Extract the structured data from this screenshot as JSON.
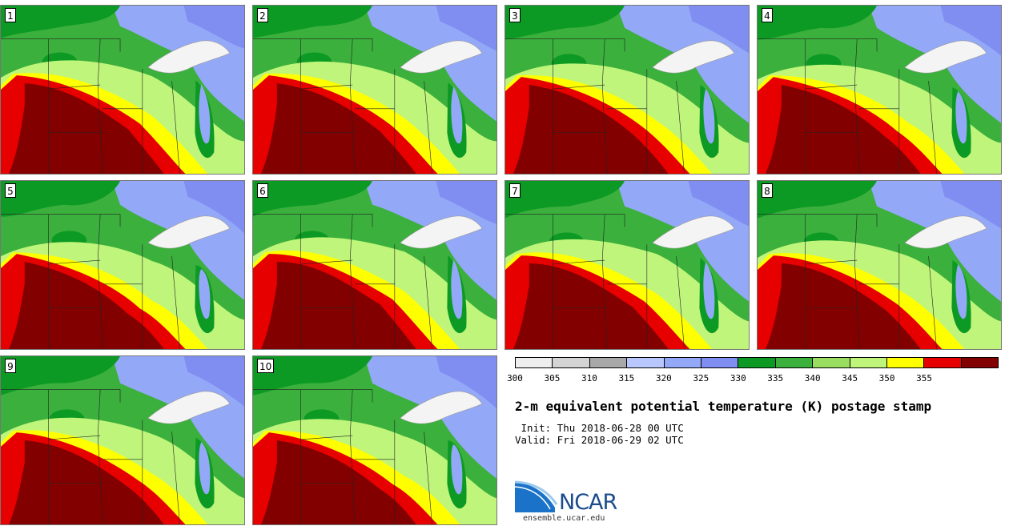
{
  "panels": [
    {
      "label": "1"
    },
    {
      "label": "2"
    },
    {
      "label": "3"
    },
    {
      "label": "4"
    },
    {
      "label": "5"
    },
    {
      "label": "6"
    },
    {
      "label": "7"
    },
    {
      "label": "8"
    },
    {
      "label": "9"
    },
    {
      "label": "10"
    }
  ],
  "colorbar": {
    "colors": [
      "#eeeeee",
      "#d4d4d4",
      "#a8a8a8",
      "#b8c8ff",
      "#94a8f8",
      "#7f8ef0",
      "#0c9a24",
      "#3bb03c",
      "#99dd61",
      "#bff57a",
      "#ffff00",
      "#e60000",
      "#820000"
    ],
    "min": 300,
    "max": 365,
    "ticks": [
      "300",
      "305",
      "310",
      "315",
      "320",
      "325",
      "330",
      "335",
      "340",
      "345",
      "350",
      "355"
    ]
  },
  "title": "2-m equivalent potential temperature (K) postage stamp",
  "init": " Init: Thu 2018-06-28 00 UTC",
  "valid": "Valid: Fri 2018-06-29 02 UTC",
  "logo_text": "NCAR",
  "url": "ensemble.ucar.edu",
  "colors": {
    "ocean_blue": "#7f8ef0",
    "light_blue": "#94a8f8",
    "dark_green": "#0c9a24",
    "green": "#3bb03c",
    "light_green": "#bff57a",
    "yellow": "#ffff00",
    "red": "#e60000",
    "dark_red": "#820000",
    "lake_white": "#f4f4f4"
  }
}
